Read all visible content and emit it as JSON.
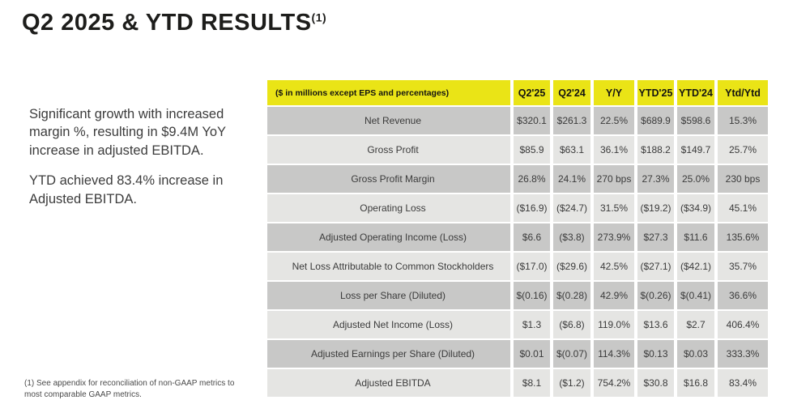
{
  "page": {
    "title": "Q2 2025 & YTD RESULTS",
    "title_superscript": "(1)",
    "footnote": "(1) See appendix for reconciliation of non-GAAP metrics to most comparable GAAP metrics."
  },
  "summary": {
    "paragraph1": "Significant growth with increased margin %, resulting in $9.4M YoY increase in adjusted EBITDA.",
    "paragraph2": "YTD achieved 83.4% increase in Adjusted EBITDA."
  },
  "colors": {
    "accent_yellow": "#eae416",
    "row_dark_gray": "#c8c8c7",
    "row_light_gray": "#e5e5e3",
    "text_dark": "#3b3b3b",
    "title_color": "#1d1d1b"
  },
  "table": {
    "header": {
      "label": "($ in millions except EPS and percentages)",
      "columns": [
        "Q2'25",
        "Q2'24",
        "Y/Y",
        "YTD'25",
        "YTD'24",
        "Ytd/Ytd"
      ]
    },
    "rows": [
      {
        "label": "Net Revenue",
        "values": [
          "$320.1",
          "$261.3",
          "22.5%",
          "$689.9",
          "$598.6",
          "15.3%"
        ]
      },
      {
        "label": "Gross Profit",
        "values": [
          "$85.9",
          "$63.1",
          "36.1%",
          "$188.2",
          "$149.7",
          "25.7%"
        ]
      },
      {
        "label": "Gross Profit Margin",
        "values": [
          "26.8%",
          "24.1%",
          "270 bps",
          "27.3%",
          "25.0%",
          "230 bps"
        ]
      },
      {
        "label": "Operating Loss",
        "values": [
          "($16.9)",
          "($24.7)",
          "31.5%",
          "($19.2)",
          "($34.9)",
          "45.1%"
        ]
      },
      {
        "label": "Adjusted Operating Income (Loss)",
        "values": [
          "$6.6",
          "($3.8)",
          "273.9%",
          "$27.3",
          "$11.6",
          "135.6%"
        ]
      },
      {
        "label": "Net Loss Attributable to Common Stockholders",
        "values": [
          "($17.0)",
          "($29.6)",
          "42.5%",
          "($27.1)",
          "($42.1)",
          "35.7%"
        ]
      },
      {
        "label": "Loss per Share (Diluted)",
        "values": [
          "$(0.16)",
          "$(0.28)",
          "42.9%",
          "$(0.26)",
          "$(0.41)",
          "36.6%"
        ]
      },
      {
        "label": "Adjusted Net Income (Loss)",
        "values": [
          "$1.3",
          "($6.8)",
          "119.0%",
          "$13.6",
          "$2.7",
          "406.4%"
        ]
      },
      {
        "label": "Adjusted Earnings per Share (Diluted)",
        "values": [
          "$0.01",
          "$(0.07)",
          "114.3%",
          "$0.13",
          "$0.03",
          "333.3%"
        ]
      },
      {
        "label": "Adjusted EBITDA",
        "values": [
          "$8.1",
          "($1.2)",
          "754.2%",
          "$30.8",
          "$16.8",
          "83.4%"
        ]
      }
    ]
  }
}
